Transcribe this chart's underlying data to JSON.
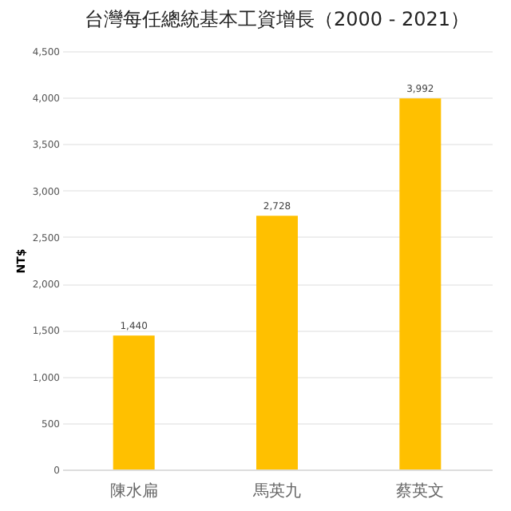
{
  "chart_data": {
    "type": "bar",
    "title": "台灣每任總統基本工資增長（2000 - 2021）",
    "ylabel": "NT$",
    "categories": [
      "陳水扁",
      "馬英九",
      "蔡英文"
    ],
    "values": [
      1440,
      2728,
      3992
    ],
    "value_labels": [
      "1,440",
      "2,728",
      "3,992"
    ],
    "color": "#ffc000",
    "ylim": [
      0,
      4500
    ],
    "yticks": [
      0,
      {
        "value": 500,
        "label": "500"
      },
      {
        "value": 1000,
        "label": "1,000"
      },
      {
        "value": 1500,
        "label": "1,500"
      },
      {
        "value": 2000,
        "label": "2,000"
      },
      {
        "value": 2500,
        "label": "2,500"
      },
      {
        "value": 3000,
        "label": "3,000"
      },
      {
        "value": 3500,
        "label": "3,500"
      },
      {
        "value": 4000,
        "label": "4,000"
      },
      {
        "value": 4500,
        "label": "4,500"
      }
    ],
    "grid": "y"
  }
}
